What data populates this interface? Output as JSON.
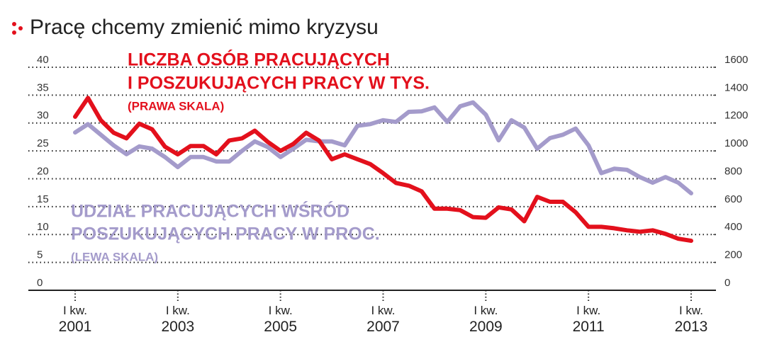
{
  "chart_data": {
    "type": "line",
    "title": "Pracę chcemy zmienić mimo kryzysu",
    "annotations": [
      {
        "text": "LICZBA OSÓB PRACUJĄCYCH",
        "color": "#e3101c"
      },
      {
        "text": "I POSZUKUJĄCYCH PRACY W TYS.",
        "color": "#e3101c"
      },
      {
        "text": "(PRAWA SKALA)",
        "color": "#e3101c"
      },
      {
        "text": "UDZIAŁ PRACUJĄCYCH WŚRÓD",
        "color": "#a49bcb"
      },
      {
        "text": "POSZUKUJĄCYCH PRACY W PROC.",
        "color": "#a49bcb"
      },
      {
        "text": "(LEWA SKALA)",
        "color": "#a49bcb"
      }
    ],
    "categories": [
      "I kw.\n2001",
      null,
      null,
      null,
      null,
      null,
      null,
      null,
      "I kw.\n2003",
      null,
      null,
      null,
      null,
      null,
      null,
      null,
      "I kw.\n2005",
      null,
      null,
      null,
      null,
      null,
      null,
      null,
      "I kw.\n2007",
      null,
      null,
      null,
      null,
      null,
      null,
      null,
      "I kw.\n2009",
      null,
      null,
      null,
      null,
      null,
      null,
      null,
      "I kw.\n2011",
      null,
      null,
      null,
      null,
      null,
      null,
      null,
      "I kw.\n2013"
    ],
    "series": [
      {
        "color": "#e3101c",
        "axis": "y2",
        "values": [
          1245,
          1380,
          1220,
          1130,
          1090,
          1195,
          1155,
          1030,
          975,
          1035,
          1035,
          975,
          1075,
          1090,
          1145,
          1065,
          1000,
          1050,
          1130,
          1075,
          940,
          975,
          940,
          905,
          840,
          770,
          750,
          710,
          585,
          585,
          575,
          525,
          520,
          595,
          580,
          495,
          670,
          635,
          635,
          560,
          455,
          455,
          445,
          430,
          420,
          430,
          405,
          370,
          355
        ]
      },
      {
        "color": "#a49bcb",
        "values": [
          28.3,
          29.8,
          27.9,
          26.0,
          24.4,
          25.8,
          25.4,
          23.9,
          22.1,
          23.9,
          23.9,
          23.1,
          23.1,
          25.0,
          26.7,
          25.7,
          23.9,
          25.4,
          27.0,
          26.7,
          26.7,
          26.0,
          29.5,
          29.8,
          30.5,
          30.2,
          32.0,
          32.1,
          32.8,
          30.2,
          33.0,
          33.7,
          31.5,
          26.9,
          30.5,
          29.2,
          25.4,
          27.3,
          27.9,
          29.0,
          26.0,
          21.0,
          21.8,
          21.6,
          20.3,
          19.3,
          20.3,
          19.3,
          17.4
        ]
      }
    ],
    "ylim": [
      0,
      40
    ],
    "yticks": [
      0,
      5,
      10,
      15,
      20,
      25,
      30,
      35,
      40
    ],
    "y2lim": [
      0,
      1600
    ],
    "y2ticks": [
      0,
      200,
      400,
      600,
      800,
      1000,
      1200,
      1400,
      1600
    ],
    "grid": true
  }
}
